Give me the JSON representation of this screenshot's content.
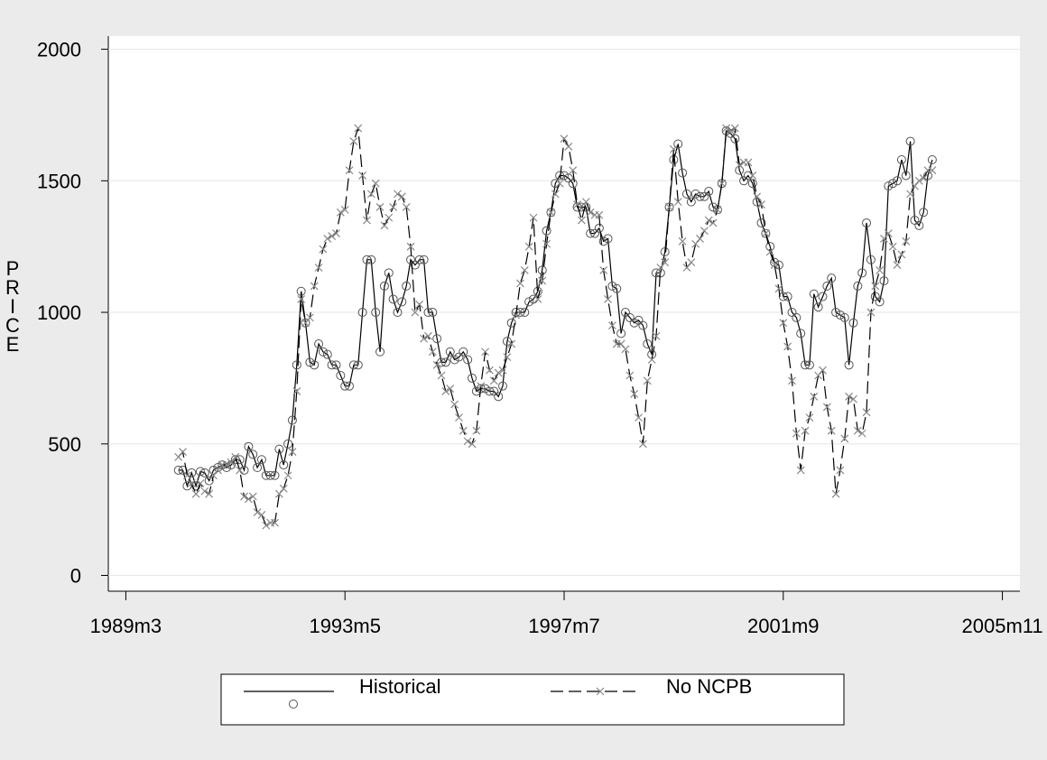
{
  "chart_data": {
    "type": "line",
    "ylabel": "PRICE",
    "x": [
      "1990m3",
      "1990m4",
      "1990m5",
      "1990m6",
      "1990m7",
      "1990m8",
      "1990m9",
      "1990m10",
      "1990m11",
      "1990m12",
      "1991m1",
      "1991m2",
      "1991m3",
      "1991m4",
      "1991m5",
      "1991m6",
      "1991m7",
      "1991m8",
      "1991m9",
      "1991m10",
      "1991m11",
      "1991m12",
      "1992m1",
      "1992m2",
      "1992m3",
      "1992m4",
      "1992m5",
      "1992m6",
      "1992m7",
      "1992m8",
      "1992m9",
      "1992m10",
      "1992m11",
      "1992m12",
      "1993m1",
      "1993m2",
      "1993m3",
      "1993m4",
      "1993m5",
      "1993m6",
      "1993m7",
      "1993m8",
      "1993m9",
      "1993m10",
      "1993m11",
      "1993m12",
      "1994m1",
      "1994m2",
      "1994m3",
      "1994m4",
      "1994m5",
      "1994m6",
      "1994m7",
      "1994m8",
      "1994m9",
      "1994m10",
      "1994m11",
      "1994m12",
      "1995m1",
      "1995m2",
      "1995m3",
      "1995m4",
      "1995m5",
      "1995m6",
      "1995m7",
      "1995m8",
      "1995m9",
      "1995m10",
      "1995m11",
      "1995m12",
      "1996m1",
      "1996m2",
      "1996m3",
      "1996m4",
      "1996m5",
      "1996m6",
      "1996m7",
      "1996m8",
      "1996m9",
      "1996m10",
      "1996m11",
      "1996m12",
      "1997m1",
      "1997m2",
      "1997m3",
      "1997m4",
      "1997m5",
      "1997m6",
      "1997m7",
      "1997m8",
      "1997m9",
      "1997m10",
      "1997m11",
      "1997m12",
      "1998m1",
      "1998m2",
      "1998m3",
      "1998m4",
      "1998m5",
      "1998m6",
      "1998m7",
      "1998m8",
      "1998m9",
      "1998m10",
      "1998m11",
      "1998m12",
      "1999m1",
      "1999m2",
      "1999m3",
      "1999m4",
      "1999m5",
      "1999m6",
      "1999m7",
      "1999m8",
      "1999m9",
      "1999m10",
      "1999m11",
      "1999m12",
      "2000m1",
      "2000m2",
      "2000m3",
      "2000m4",
      "2000m5",
      "2000m6",
      "2000m7",
      "2000m8",
      "2000m9",
      "2000m10",
      "2000m11",
      "2000m12",
      "2001m1",
      "2001m2",
      "2001m3",
      "2001m4",
      "2001m5",
      "2001m6",
      "2001m7",
      "2001m8",
      "2001m9",
      "2001m10",
      "2001m11",
      "2001m12",
      "2002m1",
      "2002m2",
      "2002m3",
      "2002m4",
      "2002m5",
      "2002m6",
      "2002m7",
      "2002m8",
      "2002m9",
      "2002m10",
      "2002m11",
      "2002m12",
      "2003m1",
      "2003m2",
      "2003m3",
      "2003m4",
      "2003m5",
      "2003m6",
      "2003m7",
      "2003m8",
      "2003m9",
      "2003m10",
      "2003m11",
      "2003m12",
      "2004m1",
      "2004m2",
      "2004m3",
      "2004m4",
      "2004m5",
      "2004m6",
      "2004m7"
    ],
    "series": [
      {
        "name": "Historical",
        "color": "#000000",
        "marker": "circle",
        "dash": "solid",
        "values": [
          400,
          400,
          340,
          390,
          340,
          395,
          390,
          360,
          400,
          410,
          420,
          410,
          420,
          440,
          440,
          400,
          490,
          460,
          410,
          440,
          380,
          380,
          380,
          480,
          420,
          500,
          590,
          800,
          1080,
          960,
          810,
          800,
          880,
          850,
          840,
          800,
          800,
          760,
          720,
          720,
          800,
          800,
          1000,
          1200,
          1200,
          1000,
          850,
          1100,
          1150,
          1050,
          1000,
          1040,
          1100,
          1200,
          1180,
          1200,
          1200,
          1000,
          1000,
          900,
          810,
          810,
          850,
          820,
          830,
          850,
          820,
          750,
          700,
          710,
          710,
          700,
          700,
          680,
          720,
          890,
          960,
          1000,
          1000,
          1000,
          1040,
          1050,
          1080,
          1160,
          1310,
          1380,
          1490,
          1520,
          1520,
          1510,
          1490,
          1400,
          1400,
          1400,
          1300,
          1300,
          1320,
          1270,
          1280,
          1100,
          1090,
          920,
          1000,
          980,
          960,
          970,
          950,
          880,
          840,
          1150,
          1150,
          1230,
          1400,
          1580,
          1640,
          1530,
          1450,
          1420,
          1450,
          1440,
          1440,
          1460,
          1400,
          1390,
          1490,
          1690,
          1680,
          1660,
          1540,
          1500,
          1520,
          1490,
          1420,
          1340,
          1300,
          1250,
          1190,
          1180,
          1060,
          1060,
          1000,
          980,
          920,
          800,
          800,
          1070,
          1020,
          1060,
          1100,
          1130,
          1000,
          990,
          980,
          800,
          960,
          1100,
          1150,
          1340,
          1200,
          1060,
          1040,
          1120,
          1480,
          1490,
          1500,
          1580,
          1520,
          1650,
          1350,
          1330,
          1380,
          1520,
          1580
        ]
      },
      {
        "name": "No NCPB",
        "color": "#000000",
        "marker": "x",
        "dash": "dashed",
        "values": [
          450,
          470,
          380,
          350,
          310,
          350,
          320,
          310,
          380,
          400,
          420,
          420,
          430,
          450,
          400,
          300,
          290,
          300,
          240,
          230,
          190,
          200,
          200,
          310,
          330,
          380,
          470,
          700,
          1050,
          960,
          980,
          1100,
          1170,
          1240,
          1280,
          1290,
          1300,
          1380,
          1390,
          1540,
          1650,
          1700,
          1520,
          1350,
          1450,
          1490,
          1400,
          1330,
          1360,
          1400,
          1450,
          1440,
          1400,
          1250,
          1000,
          1030,
          900,
          910,
          850,
          800,
          760,
          700,
          710,
          650,
          600,
          550,
          510,
          500,
          550,
          720,
          850,
          780,
          740,
          770,
          780,
          830,
          880,
          990,
          1110,
          1160,
          1250,
          1360,
          1050,
          1120,
          1260,
          1380,
          1450,
          1490,
          1660,
          1630,
          1540,
          1410,
          1350,
          1420,
          1380,
          1370,
          1370,
          1160,
          1050,
          950,
          880,
          880,
          860,
          760,
          690,
          600,
          500,
          740,
          820,
          910,
          1170,
          1190,
          1400,
          1620,
          1420,
          1270,
          1170,
          1190,
          1260,
          1280,
          1310,
          1350,
          1340,
          1390,
          1490,
          1700,
          1690,
          1700,
          1560,
          1570,
          1570,
          1520,
          1440,
          1410,
          1300,
          1230,
          1180,
          1090,
          960,
          870,
          740,
          540,
          400,
          550,
          600,
          680,
          760,
          780,
          640,
          550,
          310,
          400,
          520,
          680,
          670,
          550,
          540,
          620,
          1000,
          1100,
          1160,
          1280,
          1300,
          1250,
          1180,
          1220,
          1270,
          1450,
          1480,
          1500,
          1510,
          1540,
          1540
        ]
      }
    ],
    "xlim": [
      "1988m11",
      "2006m3"
    ],
    "xticks": [
      "1989m3",
      "1993m5",
      "1997m7",
      "2001m9",
      "2005m11"
    ],
    "ylim": [
      -60,
      2050
    ],
    "yticks": [
      0,
      500,
      1000,
      1500,
      2000
    ],
    "grid": true,
    "legend": "bottom"
  }
}
